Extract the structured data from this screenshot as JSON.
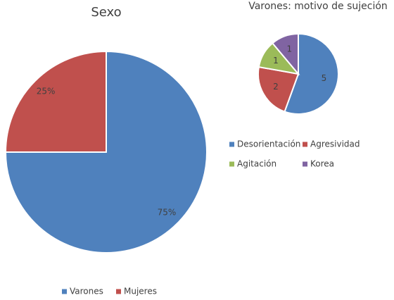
{
  "chart_data": [
    {
      "type": "pie",
      "title": "Sexo",
      "categories": [
        "Varones",
        "Mujeres"
      ],
      "values": [
        75,
        25
      ],
      "value_labels": [
        "75%",
        "25%"
      ],
      "colors": [
        "#4f81bd",
        "#c0504d"
      ]
    },
    {
      "type": "pie",
      "title": "Varones: motivo de sujeción",
      "categories": [
        "Desorientación",
        "Agresividad",
        "Agitación",
        "Korea"
      ],
      "values": [
        5,
        2,
        1,
        1
      ],
      "colors": [
        "#4f81bd",
        "#c0504d",
        "#9bbb59",
        "#8064a2"
      ]
    }
  ]
}
